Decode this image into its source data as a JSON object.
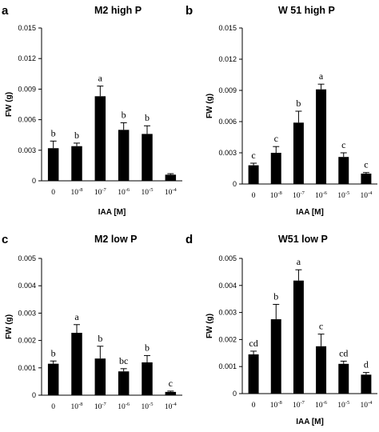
{
  "chart_data": [
    {
      "panel": "a",
      "type": "bar",
      "title": "M2 high P",
      "ylabel": "FW (g)",
      "xlabel": "IAA [M]",
      "ylim": [
        0,
        0.015
      ],
      "yticks": [
        "0",
        "0.003",
        "0.006",
        "0.009",
        "0.012",
        "0.015"
      ],
      "categories": [
        "0",
        "10-8",
        "10-7",
        "10-6",
        "10-5",
        "10-4"
      ],
      "values": [
        0.0032,
        0.0034,
        0.0083,
        0.005,
        0.0046,
        0.0006
      ],
      "errors": [
        0.0007,
        0.0003,
        0.001,
        0.0007,
        0.0008,
        0.0001
      ],
      "significance": [
        "b",
        "b",
        "a",
        "b",
        "b",
        ""
      ]
    },
    {
      "panel": "b",
      "type": "bar",
      "title": "W 51 high P",
      "ylabel": "FW (g)",
      "xlabel": "IAA [M]",
      "ylim": [
        0,
        0.015
      ],
      "yticks": [
        "0",
        "0.003",
        "0.006",
        "0.009",
        "0.012",
        "0.015"
      ],
      "categories": [
        "0",
        "10-8",
        "10-7",
        "10-6",
        "10-5",
        "10-4"
      ],
      "values": [
        0.0018,
        0.003,
        0.0059,
        0.0091,
        0.0026,
        0.001
      ],
      "errors": [
        0.0002,
        0.0006,
        0.0011,
        0.0005,
        0.0004,
        0.0001
      ],
      "significance": [
        "c",
        "c",
        "b",
        "a",
        "c",
        "c"
      ]
    },
    {
      "panel": "c",
      "type": "bar",
      "title": "M2 low P",
      "ylabel": "FW (g)",
      "xlabel": "",
      "ylim": [
        0,
        0.005
      ],
      "yticks": [
        "0",
        "0.001",
        "0.002",
        "0.003",
        "0.004",
        "0.005"
      ],
      "categories": [
        "0",
        "10-8",
        "10-7",
        "10-6",
        "10-5",
        "10-4"
      ],
      "values": [
        0.00115,
        0.00228,
        0.00134,
        0.00087,
        0.0012,
        0.00012
      ],
      "errors": [
        0.0001,
        0.0003,
        0.00045,
        0.0001,
        0.00025,
        3e-05
      ],
      "significance": [
        "b",
        "a",
        "b",
        "bc",
        "b",
        "c"
      ]
    },
    {
      "panel": "d",
      "type": "bar",
      "title": "W51 low P",
      "ylabel": "FW (g)",
      "xlabel": "IAA [M]",
      "ylim": [
        0,
        0.005
      ],
      "yticks": [
        "0",
        "0.001",
        "0.002",
        "0.003",
        "0.004",
        "0.005"
      ],
      "categories": [
        "0",
        "10-8",
        "10-7",
        "10-6",
        "10-5",
        "10-4"
      ],
      "values": [
        0.00145,
        0.00275,
        0.00418,
        0.00175,
        0.0011,
        0.0007
      ],
      "errors": [
        0.00012,
        0.00055,
        0.0004,
        0.00045,
        0.0001,
        8e-05
      ],
      "significance": [
        "cd",
        "b",
        "a",
        "c",
        "cd",
        "d"
      ]
    }
  ]
}
